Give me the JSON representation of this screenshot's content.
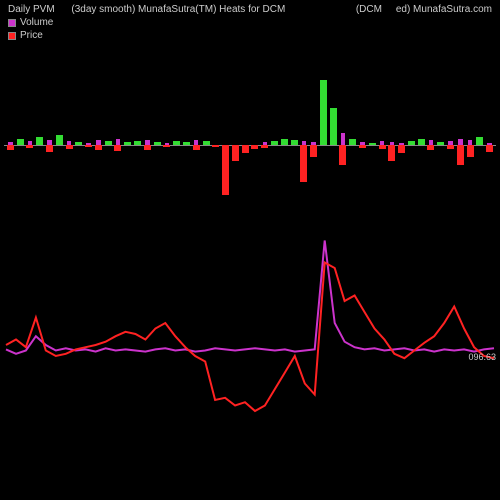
{
  "header": {
    "left1": "Daily PVM",
    "left2": "(3day smooth) MunafaSutra(TM) Heats for DCM",
    "right1": "(DCM",
    "right2": "ed) MunafaSutra.com"
  },
  "legend": {
    "volume": {
      "label": "Volume",
      "color": "#cc33cc"
    },
    "price": {
      "label": "Price",
      "color": "#ff2222"
    }
  },
  "colors": {
    "background": "#000000",
    "axis": "#888888",
    "bar_up": "#33dd33",
    "bar_down": "#ff2222",
    "bar_vol": "#cc33cc",
    "line_price": "#ff2222",
    "line_vol": "#cc33cc",
    "text": "#cccccc"
  },
  "bar_chart": {
    "type": "bar",
    "baseline": 0,
    "vol_bars": [
      4,
      8,
      5,
      10,
      6,
      7,
      5,
      4,
      3,
      6,
      5,
      7,
      4,
      5,
      6,
      4,
      3,
      5,
      4,
      6,
      5,
      0,
      0,
      0,
      0,
      0,
      4,
      5,
      8,
      6,
      5,
      4,
      50,
      35,
      15,
      8,
      4,
      3,
      5,
      4,
      3,
      5,
      7,
      6,
      4,
      5,
      8,
      6,
      4,
      3
    ],
    "main_bars": [
      -6,
      8,
      -4,
      10,
      -8,
      12,
      -5,
      4,
      -3,
      -6,
      5,
      -7,
      4,
      5,
      -6,
      4,
      -3,
      5,
      4,
      -6,
      5,
      -3,
      -62,
      -20,
      -10,
      -5,
      -4,
      5,
      8,
      6,
      -45,
      -15,
      80,
      45,
      -25,
      8,
      -4,
      3,
      -5,
      -20,
      -10,
      5,
      7,
      -6,
      4,
      -5,
      -25,
      -15,
      10,
      -8
    ]
  },
  "line_chart": {
    "type": "line",
    "price_line": [
      0,
      5,
      -2,
      25,
      -5,
      -10,
      -8,
      -4,
      -2,
      0,
      3,
      8,
      12,
      10,
      5,
      15,
      20,
      8,
      -2,
      -10,
      -15,
      -50,
      -48,
      -55,
      -52,
      -60,
      -55,
      -40,
      -25,
      -10,
      -35,
      -45,
      75,
      70,
      40,
      45,
      30,
      15,
      5,
      -8,
      -12,
      -5,
      2,
      8,
      20,
      35,
      15,
      -2,
      -10,
      -12
    ],
    "vol_line": [
      -4,
      -8,
      -5,
      8,
      0,
      -5,
      -3,
      -5,
      -4,
      -6,
      -3,
      -5,
      -4,
      -5,
      -6,
      -4,
      -3,
      -5,
      -4,
      -6,
      -5,
      -3,
      -4,
      -5,
      -4,
      -3,
      -4,
      -5,
      -4,
      -6,
      -5,
      -4,
      95,
      20,
      3,
      -2,
      -4,
      -3,
      -5,
      -4,
      -3,
      -5,
      -4,
      -6,
      -4,
      -5,
      -4,
      -6,
      -4,
      -3
    ],
    "y_range": 100,
    "right_label": "096.63"
  }
}
